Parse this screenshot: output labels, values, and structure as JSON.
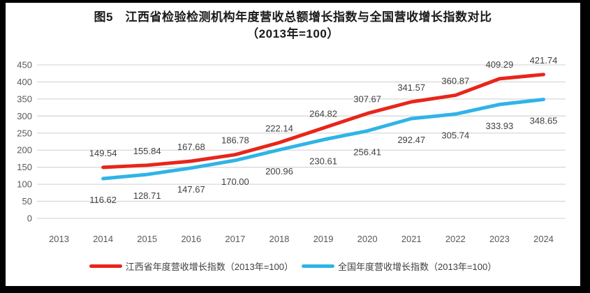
{
  "frame": {
    "border_color": "#000000",
    "background": "#ffffff"
  },
  "colors": {
    "jiangxi_line": "#e8251a",
    "national_line": "#2fb4e7",
    "gridline": "#d9d9d9",
    "axis_text": "#595959",
    "data_label_text": "#404040",
    "title_text": "#1a1a1a"
  },
  "chart_data": {
    "type": "line",
    "title": "图5　江西省检验检测机构年度营收总额增长指数与全国营收增长指数对比（2013年=100）",
    "title_lines": {
      "line1": "图5　江西省检验检测机构年度营收总额增长指数与全国营收增长指数对比",
      "line2": "（2013年=100）"
    },
    "x": [
      "2013",
      "2014",
      "2015",
      "2016",
      "2017",
      "2018",
      "2019",
      "2020",
      "2021",
      "2022",
      "2023",
      "2024"
    ],
    "series_start_x": "2014",
    "series": [
      {
        "name": "江西省年度营收增长指数（2013年=100）",
        "color": "#e8251a",
        "label_position": "above",
        "values": [
          149.54,
          155.84,
          167.68,
          186.78,
          222.14,
          264.82,
          307.67,
          341.57,
          360.87,
          409.29,
          421.74
        ]
      },
      {
        "name": "全国年度营收增长指数（2013年=100）",
        "color": "#2fb4e7",
        "label_position": "below",
        "values": [
          116.62,
          128.71,
          147.67,
          170.0,
          200.96,
          230.61,
          256.41,
          292.47,
          305.74,
          333.93,
          348.65
        ]
      }
    ],
    "y_ticks": [
      0,
      50,
      100,
      150,
      200,
      250,
      300,
      350,
      400,
      450
    ],
    "ylim": [
      0,
      450
    ],
    "xlabel": "",
    "ylabel": "",
    "grid": true,
    "legend_position": "bottom",
    "value_decimals": 2
  }
}
